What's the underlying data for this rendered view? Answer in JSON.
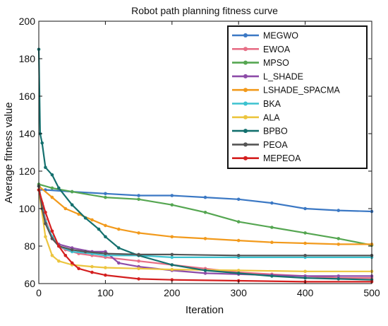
{
  "chart_data": {
    "type": "line",
    "title": "Robot path planning fitness curve",
    "xlabel": "Iteration",
    "ylabel": "Average fitness value",
    "xlim": [
      0,
      500
    ],
    "ylim": [
      60,
      200
    ],
    "xticks": [
      0,
      100,
      200,
      300,
      400,
      500
    ],
    "yticks": [
      60,
      80,
      100,
      120,
      140,
      160,
      180,
      200
    ],
    "grid": false,
    "legend_position": "top-right",
    "series": [
      {
        "name": "MEGWO",
        "color": "#3b78c4",
        "points": [
          [
            0,
            110
          ],
          [
            10,
            110
          ],
          [
            50,
            109
          ],
          [
            100,
            108
          ],
          [
            150,
            107
          ],
          [
            200,
            107
          ],
          [
            250,
            106
          ],
          [
            300,
            105
          ],
          [
            350,
            103
          ],
          [
            400,
            100
          ],
          [
            450,
            99
          ],
          [
            500,
            98.5
          ]
        ]
      },
      {
        "name": "EWOA",
        "color": "#e76f86",
        "points": [
          [
            0,
            110
          ],
          [
            5,
            103
          ],
          [
            10,
            94
          ],
          [
            20,
            85
          ],
          [
            30,
            80
          ],
          [
            40,
            78
          ],
          [
            60,
            76
          ],
          [
            80,
            75
          ],
          [
            100,
            74
          ],
          [
            150,
            72
          ],
          [
            200,
            70
          ],
          [
            250,
            68
          ],
          [
            300,
            66
          ],
          [
            350,
            65
          ],
          [
            400,
            64
          ],
          [
            450,
            63
          ],
          [
            500,
            63
          ]
        ]
      },
      {
        "name": "MPSO",
        "color": "#55a651",
        "points": [
          [
            0,
            113
          ],
          [
            20,
            111
          ],
          [
            50,
            109
          ],
          [
            100,
            106
          ],
          [
            150,
            105
          ],
          [
            200,
            102
          ],
          [
            250,
            98
          ],
          [
            300,
            93
          ],
          [
            350,
            90
          ],
          [
            400,
            87
          ],
          [
            450,
            84
          ],
          [
            500,
            80.5
          ]
        ]
      },
      {
        "name": "L_SHADE",
        "color": "#8d4ca8",
        "points": [
          [
            0,
            112
          ],
          [
            5,
            102
          ],
          [
            10,
            93
          ],
          [
            20,
            84
          ],
          [
            30,
            81
          ],
          [
            50,
            79
          ],
          [
            80,
            77
          ],
          [
            100,
            77
          ],
          [
            120,
            71
          ],
          [
            150,
            69
          ],
          [
            200,
            67
          ],
          [
            250,
            65.5
          ],
          [
            300,
            65
          ],
          [
            350,
            64.5
          ],
          [
            400,
            64
          ],
          [
            450,
            64
          ],
          [
            500,
            64
          ]
        ]
      },
      {
        "name": "LSHADE_SPACMA",
        "color": "#f29a1c",
        "points": [
          [
            0,
            112
          ],
          [
            20,
            106
          ],
          [
            40,
            100
          ],
          [
            60,
            97
          ],
          [
            80,
            94
          ],
          [
            100,
            91
          ],
          [
            120,
            89
          ],
          [
            150,
            87
          ],
          [
            200,
            85
          ],
          [
            250,
            84
          ],
          [
            300,
            83
          ],
          [
            350,
            82
          ],
          [
            400,
            81.5
          ],
          [
            450,
            81
          ],
          [
            500,
            81
          ]
        ]
      },
      {
        "name": "BKA",
        "color": "#3cc2cf",
        "points": [
          [
            0,
            112
          ],
          [
            5,
            102
          ],
          [
            10,
            93
          ],
          [
            20,
            85
          ],
          [
            30,
            80
          ],
          [
            50,
            77
          ],
          [
            80,
            76
          ],
          [
            100,
            75
          ],
          [
            150,
            75
          ],
          [
            200,
            74
          ],
          [
            300,
            74
          ],
          [
            400,
            74
          ],
          [
            500,
            74
          ]
        ]
      },
      {
        "name": "ALA",
        "color": "#ecc53f",
        "points": [
          [
            0,
            110
          ],
          [
            10,
            85
          ],
          [
            20,
            75
          ],
          [
            30,
            72
          ],
          [
            50,
            70
          ],
          [
            80,
            69
          ],
          [
            100,
            68.5
          ],
          [
            150,
            68
          ],
          [
            200,
            67.5
          ],
          [
            300,
            67
          ],
          [
            400,
            66.5
          ],
          [
            500,
            66.5
          ]
        ]
      },
      {
        "name": "BPBO",
        "color": "#14706e",
        "points": [
          [
            0,
            185
          ],
          [
            2,
            140
          ],
          [
            5,
            135
          ],
          [
            10,
            122
          ],
          [
            20,
            118
          ],
          [
            30,
            111
          ],
          [
            50,
            102
          ],
          [
            70,
            95
          ],
          [
            90,
            89
          ],
          [
            100,
            85
          ],
          [
            120,
            79
          ],
          [
            150,
            75
          ],
          [
            200,
            70
          ],
          [
            250,
            67
          ],
          [
            300,
            65.5
          ],
          [
            350,
            64
          ],
          [
            400,
            63
          ],
          [
            450,
            62.5
          ],
          [
            500,
            62
          ]
        ]
      },
      {
        "name": "PEOA",
        "color": "#555555",
        "points": [
          [
            0,
            112
          ],
          [
            5,
            100
          ],
          [
            10,
            92
          ],
          [
            20,
            84
          ],
          [
            30,
            80
          ],
          [
            50,
            78
          ],
          [
            70,
            77
          ],
          [
            100,
            76
          ],
          [
            150,
            75.5
          ],
          [
            200,
            75.5
          ],
          [
            300,
            75
          ],
          [
            400,
            75
          ],
          [
            500,
            75
          ]
        ]
      },
      {
        "name": "MEPEOA",
        "color": "#d41f1f",
        "points": [
          [
            0,
            110
          ],
          [
            10,
            98
          ],
          [
            20,
            88
          ],
          [
            30,
            80
          ],
          [
            40,
            75
          ],
          [
            50,
            71
          ],
          [
            60,
            68
          ],
          [
            80,
            66
          ],
          [
            100,
            64.5
          ],
          [
            150,
            62.5
          ],
          [
            200,
            62
          ],
          [
            300,
            61.5
          ],
          [
            400,
            61
          ],
          [
            500,
            61
          ]
        ]
      }
    ]
  }
}
